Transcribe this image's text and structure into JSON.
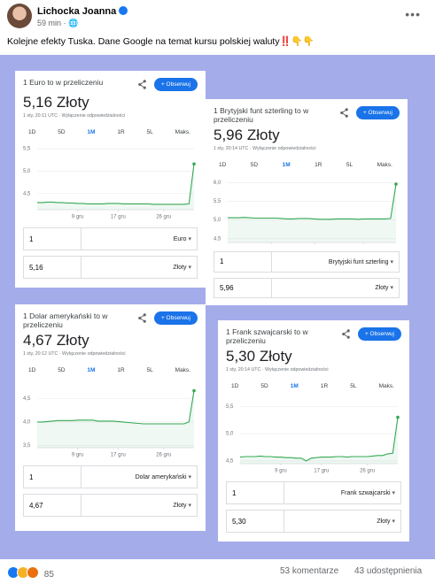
{
  "post": {
    "author": "Lichocka Joanna",
    "time": "59 min ·",
    "text": "Kolejne efekty Tuska. Dane Google na temat kursu polskiej waluty‼️👇👇"
  },
  "cards": [
    {
      "title": "1 Euro to w przeliczeniu",
      "value": "5,16",
      "unit": "Złoty",
      "timestamp": "1 sty, 20:11 UTC · Wyłączenie odpowiedzialności",
      "button": "+ Obserwuj",
      "tabs": [
        "1D",
        "5D",
        "1M",
        "1R",
        "5L",
        "Maks."
      ],
      "chart": {
        "type": "line",
        "color": "#34a853",
        "values": [
          4.3,
          4.3,
          4.31,
          4.31,
          4.3,
          4.3,
          4.29,
          4.29,
          4.28,
          4.28,
          4.27,
          4.27,
          4.27,
          4.27,
          4.28,
          4.28,
          4.28,
          4.27,
          4.27,
          4.27,
          4.27,
          4.27,
          4.27,
          4.26,
          4.26,
          4.26,
          4.26,
          4.26,
          4.26,
          4.26,
          4.27,
          5.16
        ],
        "xlim": [
          0,
          31
        ],
        "xticks": [
          {
            "value": 8,
            "label": "9 gru"
          },
          {
            "value": 16,
            "label": "17 gru"
          },
          {
            "value": 25,
            "label": "26 gru"
          }
        ],
        "ylim": [
          4.14,
          5.6
        ],
        "yticks": [
          {
            "value": 4.5,
            "label": "4,5"
          },
          {
            "value": 5.0,
            "label": "5,0"
          },
          {
            "value": 5.5,
            "label": "5,5"
          }
        ],
        "grid": true
      },
      "inputs": [
        {
          "amount": "1",
          "currency": "Euro"
        },
        {
          "amount": "5,16",
          "currency": "Złoty"
        }
      ]
    },
    {
      "title": "1 Brytyjski funt szterling to w przeliczeniu",
      "value": "5,96",
      "unit": "Złoty",
      "timestamp": "1 sty, 20:14 UTC · Wyłączenie odpowiedzialności",
      "button": "+ Obserwuj",
      "tabs": [
        "1D",
        "5D",
        "1M",
        "1R",
        "5L",
        "Maks."
      ],
      "chart": {
        "type": "line",
        "color": "#34a853",
        "values": [
          5.06,
          5.06,
          5.06,
          5.07,
          5.06,
          5.05,
          5.05,
          5.05,
          5.05,
          5.05,
          5.04,
          5.03,
          5.03,
          5.04,
          5.04,
          5.04,
          5.03,
          5.02,
          5.02,
          5.02,
          5.03,
          5.03,
          5.03,
          5.03,
          5.02,
          5.03,
          5.03,
          5.03,
          5.03,
          5.03,
          5.04,
          5.96
        ],
        "xlim": [
          0,
          31
        ],
        "xticks": [
          {
            "value": 8,
            "label": "9 gru"
          },
          {
            "value": 16,
            "label": "17 gru"
          },
          {
            "value": 25,
            "label": "26 gru"
          }
        ],
        "ylim": [
          4.4,
          6.15
        ],
        "yticks": [
          {
            "value": 4.5,
            "label": "4,5"
          },
          {
            "value": 5.0,
            "label": "5,0"
          },
          {
            "value": 5.5,
            "label": "5,5"
          },
          {
            "value": 6.0,
            "label": "6,0"
          }
        ],
        "grid": true
      },
      "inputs": [
        {
          "amount": "1",
          "currency": "Brytyjski funt szterling"
        },
        {
          "amount": "5,96",
          "currency": "Złoty"
        }
      ]
    },
    {
      "title": "1 Dolar amerykański to w przeliczeniu",
      "value": "4,67",
      "unit": "Złoty",
      "timestamp": "1 sty, 20:12 UTC · Wyłączenie odpowiedzialności",
      "button": "+ Obserwuj",
      "tabs": [
        "1D",
        "5D",
        "1M",
        "1R",
        "5L",
        "Maks."
      ],
      "chart": {
        "type": "line",
        "color": "#34a853",
        "values": [
          4.0,
          4.0,
          4.01,
          4.02,
          4.03,
          4.03,
          4.03,
          4.03,
          4.04,
          4.04,
          4.04,
          4.04,
          4.02,
          4.02,
          4.02,
          4.02,
          4.01,
          4.0,
          3.99,
          3.98,
          3.97,
          3.96,
          3.96,
          3.96,
          3.96,
          3.96,
          3.96,
          3.96,
          3.96,
          3.96,
          4.0,
          4.67
        ],
        "xlim": [
          0,
          31
        ],
        "xticks": [
          {
            "value": 8,
            "label": "9 gru"
          },
          {
            "value": 16,
            "label": "17 gru"
          },
          {
            "value": 25,
            "label": "26 gru"
          }
        ],
        "ylim": [
          3.45,
          4.85
        ],
        "yticks": [
          {
            "value": 3.5,
            "label": "3,5"
          },
          {
            "value": 4.0,
            "label": "4,0"
          },
          {
            "value": 4.5,
            "label": "4,5"
          }
        ],
        "grid": true
      },
      "inputs": [
        {
          "amount": "1",
          "currency": "Dolar amerykański"
        },
        {
          "amount": "4,67",
          "currency": "Złoty"
        }
      ]
    },
    {
      "title": "1 Frank szwajcarski to w przeliczeniu",
      "value": "5,30",
      "unit": "Złoty",
      "timestamp": "1 sty, 20:14 UTC · Wyłączenie odpowiedzialności",
      "button": "+ Obserwuj",
      "tabs": [
        "1D",
        "5D",
        "1M",
        "1R",
        "5L",
        "Maks."
      ],
      "chart": {
        "type": "line",
        "color": "#34a853",
        "values": [
          4.57,
          4.58,
          4.58,
          4.58,
          4.59,
          4.58,
          4.58,
          4.57,
          4.57,
          4.56,
          4.56,
          4.55,
          4.55,
          4.5,
          4.55,
          4.56,
          4.57,
          4.57,
          4.57,
          4.58,
          4.58,
          4.57,
          4.58,
          4.58,
          4.58,
          4.58,
          4.59,
          4.6,
          4.6,
          4.63,
          4.64,
          5.3
        ],
        "xlim": [
          0,
          31
        ],
        "xticks": [
          {
            "value": 8,
            "label": "9 gru"
          },
          {
            "value": 16,
            "label": "17 gru"
          },
          {
            "value": 25,
            "label": "26 gru"
          }
        ],
        "ylim": [
          4.45,
          5.65
        ],
        "yticks": [
          {
            "value": 4.5,
            "label": "4,5"
          },
          {
            "value": 5.0,
            "label": "5,0"
          },
          {
            "value": 5.5,
            "label": "5,5"
          }
        ],
        "grid": true
      },
      "inputs": [
        {
          "amount": "1",
          "currency": "Frank szwajcarski"
        },
        {
          "amount": "5,30",
          "currency": "Złoty"
        }
      ]
    }
  ],
  "footer": {
    "reactions": "85",
    "comments": "53 komentarze",
    "shares": "43 udostępnienia"
  }
}
